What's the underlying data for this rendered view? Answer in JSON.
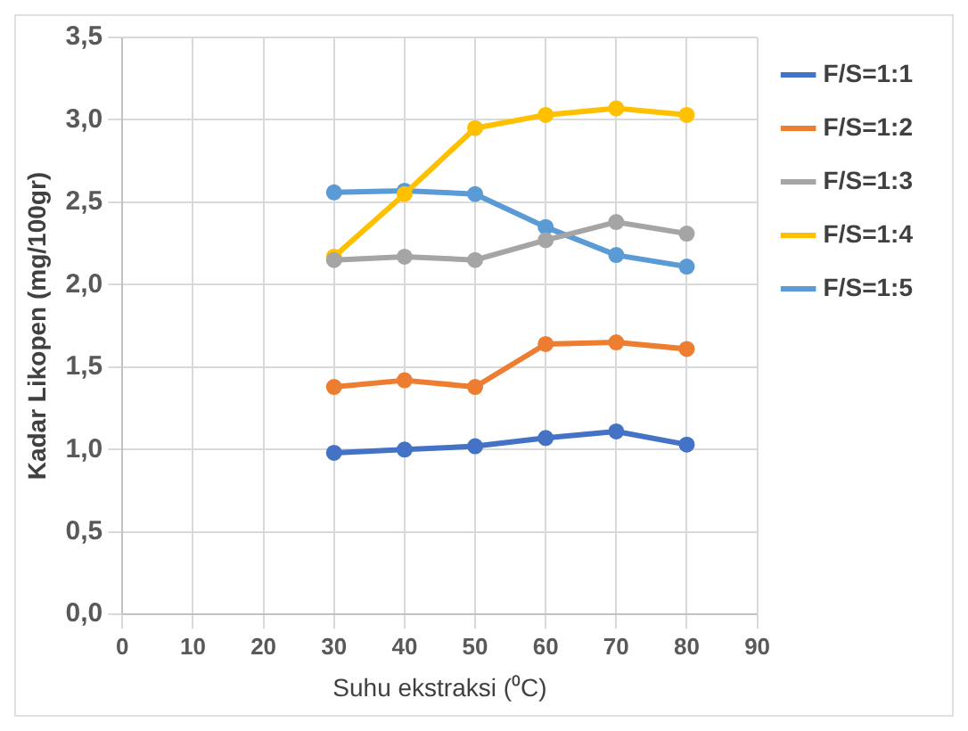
{
  "chart_data": {
    "type": "line",
    "xlabel": "Suhu ekstraksi (⁰C)",
    "ylabel": "Kadar Likopen (mg/100gr)",
    "x": [
      30,
      40,
      50,
      60,
      70,
      80
    ],
    "series": [
      {
        "name": "F/S=1:1",
        "color": "#4472c4",
        "values": [
          0.98,
          1.0,
          1.02,
          1.07,
          1.11,
          1.03
        ]
      },
      {
        "name": "F/S=1:2",
        "color": "#ed7d31",
        "values": [
          1.38,
          1.42,
          1.38,
          1.64,
          1.65,
          1.61
        ]
      },
      {
        "name": "F/S=1:3",
        "color": "#a5a5a5",
        "values": [
          2.15,
          2.17,
          2.15,
          2.27,
          2.38,
          2.31
        ]
      },
      {
        "name": "F/S=1:4",
        "color": "#ffc000",
        "values": [
          2.17,
          2.55,
          2.95,
          3.03,
          3.07,
          3.03
        ]
      },
      {
        "name": "F/S=1:5",
        "color": "#5b9bd5",
        "values": [
          2.56,
          2.57,
          2.55,
          2.35,
          2.18,
          2.11
        ]
      }
    ],
    "xlim": [
      0,
      90
    ],
    "xticks": [
      0,
      10,
      20,
      30,
      40,
      50,
      60,
      70,
      80,
      90
    ],
    "ylim": [
      0,
      3.5
    ],
    "yticks": [
      {
        "value": 0,
        "label": "0,0"
      },
      {
        "value": 0.5,
        "label": "0,5"
      },
      {
        "value": 1,
        "label": "1,0"
      },
      {
        "value": 1.5,
        "label": "1,5"
      },
      {
        "value": 2,
        "label": "2,0"
      },
      {
        "value": 2.5,
        "label": "2,5"
      },
      {
        "value": 3,
        "label": "3,0"
      },
      {
        "value": 3.5,
        "label": "3,5"
      }
    ],
    "grid": true,
    "legend": "right",
    "marker": "circle",
    "line_style": "solid"
  }
}
